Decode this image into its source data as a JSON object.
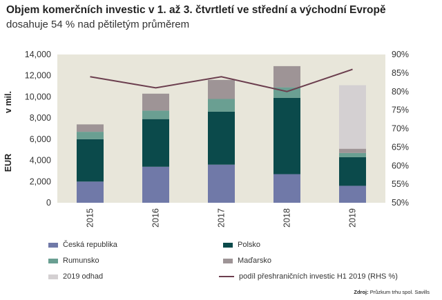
{
  "chart_data": {
    "type": "bar",
    "title": "Objem komerčních investic v 1. až 3. čtvrtletí ve střední a východní Evropě",
    "subtitle": "dosahuje 54 % nad pětiletým průměrem",
    "ylabel": "EUR v mil.",
    "ylabel_parts": [
      "v mil.",
      "EUR"
    ],
    "categories": [
      "2015",
      "2016",
      "2017",
      "2018",
      "2019"
    ],
    "ylim": [
      0,
      14000
    ],
    "yticks": [
      "0",
      "2,000",
      "4,000",
      "6,000",
      "8,000",
      "10,000",
      "12,000",
      "14,000"
    ],
    "y2lim": [
      50,
      90
    ],
    "y2ticks": [
      "50%",
      "55%",
      "60%",
      "65%",
      "70%",
      "75%",
      "80%",
      "85%",
      "90%"
    ],
    "stacked": true,
    "series": [
      {
        "name": "Česká republika",
        "color": "#7079a8",
        "values": [
          2000,
          3400,
          3600,
          2700,
          1600
        ]
      },
      {
        "name": "Polsko",
        "color": "#0b4a4b",
        "values": [
          4000,
          4500,
          5000,
          7200,
          2700
        ]
      },
      {
        "name": "Rumunsko",
        "color": "#6a9f92",
        "values": [
          700,
          800,
          1200,
          1000,
          400
        ]
      },
      {
        "name": "Maďarsko",
        "color": "#9e9496",
        "values": [
          700,
          1600,
          1800,
          2000,
          400
        ]
      },
      {
        "name": "2019 odhad",
        "color": "#d4d0d2",
        "values": [
          0,
          0,
          0,
          0,
          6000
        ]
      }
    ],
    "line_series": {
      "name": "podíl přeshraničních investic H1 2019 (RHS %)",
      "color": "#6b3e4e",
      "axis": "right",
      "values": [
        84,
        81,
        84,
        80,
        86
      ]
    },
    "legend_position": "bottom",
    "grid": false,
    "background": "#e8e6da"
  },
  "source": {
    "label": "Zdroj:",
    "text": "Průzkum trhu spol. Savills"
  }
}
